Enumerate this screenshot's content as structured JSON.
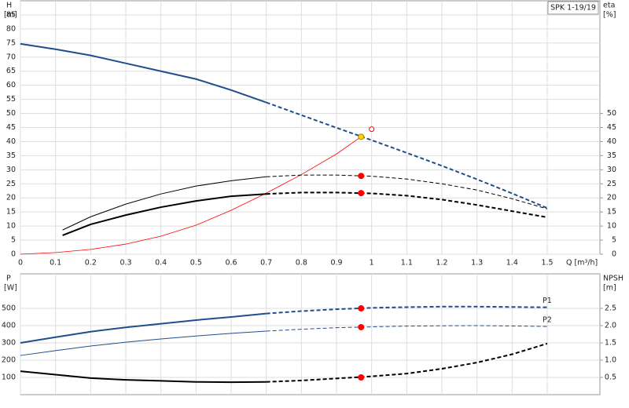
{
  "chart_data": [
    {
      "type": "line",
      "title": "SPK 1-19/19",
      "ylabel": "H",
      "yunit": "[m]",
      "y2label": "eta",
      "y2unit": "[%]",
      "xlabel": "Q [m³/h]",
      "xtick_labels": true,
      "grid": true,
      "xlim": [
        0,
        1.65
      ],
      "xticks": [
        0,
        0.1,
        0.2,
        0.3,
        0.4,
        0.5,
        0.6,
        0.7,
        0.8,
        0.9,
        1,
        1.1,
        1.2,
        1.3,
        1.4,
        1.5
      ],
      "ylim": [
        0,
        90
      ],
      "yticks": [
        0,
        5,
        10,
        15,
        20,
        25,
        30,
        35,
        40,
        45,
        50,
        55,
        60,
        65,
        70,
        75,
        80,
        85
      ],
      "y2lim": [
        0,
        90
      ],
      "y2ticks": [
        0,
        5,
        10,
        15,
        20,
        25,
        30,
        35,
        40,
        45,
        50
      ],
      "series": [
        {
          "color": "#1f4e8c",
          "width": 2,
          "dash": false,
          "x": [
            0,
            0.1,
            0.2,
            0.3,
            0.4,
            0.5,
            0.6,
            0.7
          ],
          "values": [
            74.7,
            72.8,
            70.6,
            67.8,
            65.0,
            62.2,
            58.3,
            53.9
          ]
        },
        {
          "color": "#1f4e8c",
          "width": 2,
          "dash": true,
          "x": [
            0.7,
            0.8,
            0.9,
            1,
            1.1,
            1.2,
            1.3,
            1.4,
            1.5
          ],
          "values": [
            53.9,
            49.4,
            44.9,
            40.5,
            36.0,
            31.4,
            26.6,
            21.6,
            16.4
          ]
        },
        {
          "color": "#ff0000",
          "width": 0.8,
          "dash": false,
          "axis": "y2",
          "x": [
            0,
            0.1,
            0.2,
            0.3,
            0.4,
            0.5,
            0.6,
            0.7,
            0.8,
            0.9,
            0.97
          ],
          "values": [
            0,
            0.6,
            1.7,
            3.6,
            6.4,
            10.3,
            15.6,
            21.7,
            28.3,
            35.6,
            41.7
          ]
        },
        {
          "color": "#000000",
          "width": 1,
          "dash": false,
          "axis": "y2",
          "x": [
            0.12,
            0.2,
            0.3,
            0.4,
            0.5,
            0.6,
            0.7
          ],
          "values": [
            8.6,
            13.3,
            17.8,
            21.4,
            24.2,
            26.1,
            27.5
          ]
        },
        {
          "color": "#000000",
          "width": 1,
          "dash": true,
          "axis": "y2",
          "x": [
            0.7,
            0.8,
            0.9,
            1,
            1.1,
            1.2,
            1.3,
            1.4,
            1.5
          ],
          "values": [
            27.5,
            28.1,
            28.1,
            27.7,
            26.7,
            25.0,
            22.8,
            19.7,
            16.1
          ]
        },
        {
          "color": "#000000",
          "width": 2,
          "dash": false,
          "axis": "y2",
          "x": [
            0.12,
            0.2,
            0.3,
            0.4,
            0.5,
            0.6,
            0.7
          ],
          "values": [
            6.7,
            10.6,
            13.9,
            16.7,
            18.9,
            20.6,
            21.4
          ]
        },
        {
          "color": "#000000",
          "width": 2,
          "dash": true,
          "axis": "y2",
          "x": [
            0.7,
            0.8,
            0.9,
            1,
            1.1,
            1.2,
            1.3,
            1.4,
            1.5
          ],
          "values": [
            21.4,
            21.9,
            21.9,
            21.6,
            20.8,
            19.4,
            17.5,
            15.3,
            13.1
          ]
        }
      ],
      "markers": [
        {
          "x": 0.97,
          "y": 41.7,
          "color": "#ffd700",
          "hollow": false
        },
        {
          "x": 0.97,
          "y": 27.8,
          "color": "#ff0000",
          "hollow": false,
          "axis": "y2"
        },
        {
          "x": 0.97,
          "y": 21.7,
          "color": "#ff0000",
          "hollow": false,
          "axis": "y2"
        },
        {
          "x": 1,
          "y": 44.4,
          "color": "#ff0000",
          "hollow": true,
          "axis": "y2"
        }
      ]
    },
    {
      "type": "line",
      "ylabel": "P",
      "yunit": "[W]",
      "y2label": "NPSH",
      "y2unit": "[m]",
      "xtick_labels": false,
      "grid": true,
      "xlim": [
        0,
        1.65
      ],
      "xticks": [
        0,
        0.1,
        0.2,
        0.3,
        0.4,
        0.5,
        0.6,
        0.7,
        0.8,
        0.9,
        1,
        1.1,
        1.2,
        1.3,
        1.4,
        1.5
      ],
      "ylim": [
        0,
        700
      ],
      "yticks": [
        100,
        200,
        300,
        400,
        500
      ],
      "y2lim": [
        0,
        3.5
      ],
      "y2ticks": [
        0.5,
        {
          "value": 1,
          "label": "1.0"
        },
        1.5,
        {
          "value": 2,
          "label": "2.0"
        },
        2.5
      ],
      "series": [
        {
          "color": "#1f4e8c",
          "width": 2,
          "dash": false,
          "x": [
            0,
            0.1,
            0.2,
            0.3,
            0.4,
            0.5,
            0.6,
            0.7
          ],
          "values": [
            300,
            333,
            365,
            390,
            411,
            432,
            450,
            470
          ]
        },
        {
          "name": "P1",
          "color": "#1f4e8c",
          "width": 2,
          "dash": true,
          "x": [
            0.7,
            0.8,
            0.9,
            1,
            1.1,
            1.2,
            1.3,
            1.4,
            1.5
          ],
          "values": [
            470,
            484,
            495,
            503,
            507,
            510,
            510,
            508,
            506
          ]
        },
        {
          "color": "#1f4e8c",
          "width": 1,
          "dash": false,
          "x": [
            0,
            0.1,
            0.2,
            0.3,
            0.4,
            0.5,
            0.6,
            0.7
          ],
          "values": [
            227,
            255,
            282,
            304,
            323,
            340,
            355,
            368
          ]
        },
        {
          "name": "P2",
          "color": "#1f4e8c",
          "width": 1,
          "dash": true,
          "x": [
            0.7,
            0.8,
            0.9,
            1,
            1.1,
            1.2,
            1.3,
            1.4,
            1.5
          ],
          "values": [
            368,
            379,
            388,
            393,
            397,
            399,
            400,
            398,
            395
          ]
        },
        {
          "color": "#000000",
          "width": 2,
          "dash": false,
          "axis": "y2",
          "x": [
            0,
            0.1,
            0.2,
            0.3,
            0.4,
            0.5,
            0.6,
            0.7
          ],
          "values": [
            0.68,
            0.58,
            0.48,
            0.43,
            0.4,
            0.37,
            0.36,
            0.37
          ]
        },
        {
          "color": "#000000",
          "width": 2,
          "dash": true,
          "axis": "y2",
          "x": [
            0.7,
            0.8,
            0.9,
            1,
            1.1,
            1.2,
            1.3,
            1.4,
            1.5
          ],
          "values": [
            0.37,
            0.41,
            0.47,
            0.53,
            0.61,
            0.75,
            0.93,
            1.17,
            1.48
          ]
        }
      ],
      "markers": [
        {
          "x": 0.97,
          "y": 500,
          "color": "#ff0000",
          "hollow": false
        },
        {
          "x": 0.97,
          "y": 391,
          "color": "#ff0000",
          "hollow": false
        },
        {
          "x": 0.97,
          "y": 0.5,
          "color": "#ff0000",
          "hollow": false,
          "axis": "y2"
        }
      ]
    }
  ]
}
